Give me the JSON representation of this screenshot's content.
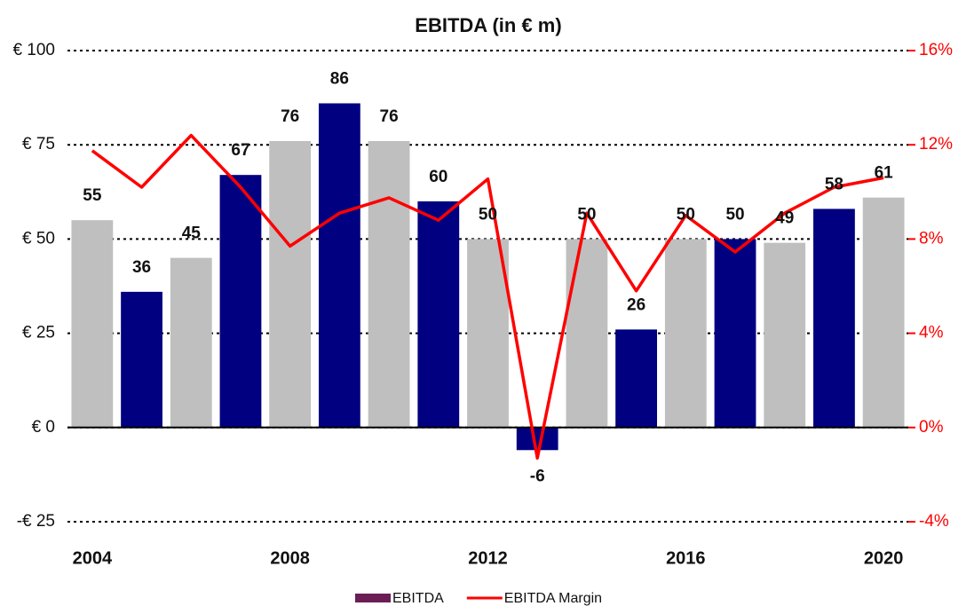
{
  "chart_data": {
    "type": "bar",
    "title": "EBITDA (in € m)",
    "categories": [
      "2004",
      null,
      null,
      null,
      "2008",
      null,
      null,
      null,
      "2012",
      null,
      null,
      null,
      "2016",
      null,
      null,
      null,
      "2020"
    ],
    "series": [
      {
        "name": "EBITDA",
        "color": "#6b1d55",
        "point_colors": [
          "#bfbfbf",
          "#000080",
          "#bfbfbf",
          "#000080",
          "#bfbfbf",
          "#000080",
          "#bfbfbf",
          "#000080",
          "#bfbfbf",
          "#000080",
          "#bfbfbf",
          "#000080",
          "#bfbfbf",
          "#000080",
          "#bfbfbf",
          "#000080",
          "#bfbfbf"
        ],
        "values": [
          55,
          36,
          45,
          67,
          76,
          86,
          76,
          60,
          50,
          -6,
          50,
          26,
          50,
          50,
          49,
          58,
          61
        ]
      },
      {
        "name": "EBITDA Margin",
        "color": "#ff0000",
        "axis": "y2",
        "type": "line",
        "values": [
          11.75,
          10.2,
          12.4,
          10.2,
          7.7,
          9.1,
          9.75,
          8.8,
          10.55,
          -1.3,
          9.1,
          5.8,
          9.0,
          7.45,
          9.1,
          10.2,
          10.6
        ]
      }
    ],
    "ylim": [
      -25,
      100
    ],
    "yticks": [
      {
        "value": -25,
        "label": "-€ 25"
      },
      {
        "value": 0,
        "label": "€ 0"
      },
      {
        "value": 25,
        "label": "€ 25"
      },
      {
        "value": 50,
        "label": "€ 50"
      },
      {
        "value": 75,
        "label": "€ 75"
      },
      {
        "value": 100,
        "label": "€ 100"
      }
    ],
    "y2lim": [
      -4,
      16
    ],
    "y2ticks": [
      {
        "value": -4,
        "label": "-4%"
      },
      {
        "value": 0,
        "label": "0%"
      },
      {
        "value": 4,
        "label": "4%"
      },
      {
        "value": 8,
        "label": "8%"
      },
      {
        "value": 12,
        "label": "12%"
      },
      {
        "value": 16,
        "label": "16%"
      }
    ],
    "grid": true,
    "legend": "bottom"
  }
}
